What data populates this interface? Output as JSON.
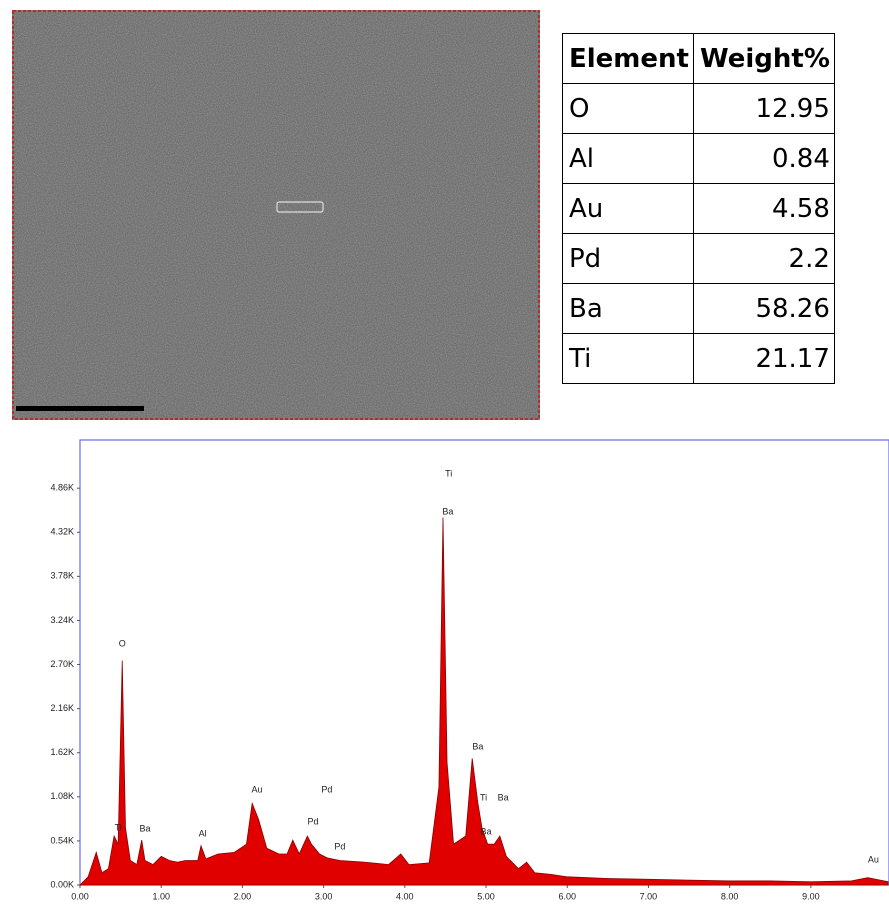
{
  "table": {
    "headers": [
      "Element",
      "Weight%"
    ],
    "rows": [
      [
        "O",
        12.95
      ],
      [
        "Al",
        0.84
      ],
      [
        "Au",
        4.58
      ],
      [
        "Pd",
        2.2
      ],
      [
        "Ba",
        58.26
      ],
      [
        "Ti",
        21.17
      ]
    ]
  },
  "chart_data": {
    "type": "area",
    "color": "#e00000",
    "x": [
      0,
      0.1,
      0.2,
      0.27,
      0.35,
      0.42,
      0.47,
      0.52,
      0.56,
      0.62,
      0.7,
      0.76,
      0.8,
      0.9,
      1.0,
      1.1,
      1.2,
      1.3,
      1.45,
      1.49,
      1.55,
      1.7,
      1.9,
      2.05,
      2.12,
      2.2,
      2.3,
      2.45,
      2.55,
      2.62,
      2.7,
      2.8,
      2.85,
      2.95,
      3.05,
      3.2,
      3.5,
      3.8,
      3.95,
      4.05,
      4.3,
      4.42,
      4.47,
      4.52,
      4.6,
      4.75,
      4.83,
      4.9,
      4.95,
      5.02,
      5.1,
      5.17,
      5.25,
      5.4,
      5.5,
      5.6,
      5.8,
      6.0,
      6.5,
      7.0,
      7.5,
      8.0,
      8.5,
      9.0,
      9.5,
      9.7,
      9.95
    ],
    "values": [
      0,
      100,
      400,
      150,
      200,
      600,
      500,
      2750,
      700,
      300,
      250,
      550,
      300,
      250,
      350,
      300,
      280,
      300,
      300,
      480,
      320,
      380,
      400,
      500,
      1000,
      800,
      450,
      380,
      380,
      550,
      380,
      600,
      500,
      380,
      330,
      300,
      280,
      250,
      380,
      250,
      270,
      1200,
      4500,
      1500,
      500,
      600,
      1550,
      1000,
      700,
      500,
      500,
      600,
      350,
      200,
      280,
      150,
      130,
      100,
      80,
      70,
      60,
      50,
      50,
      40,
      50,
      90,
      40
    ],
    "xlim": [
      0,
      9.95
    ],
    "ylim": [
      0,
      5450
    ],
    "xticks": [
      {
        "value": 0,
        "label": "0.00"
      },
      {
        "value": 1,
        "label": "1.00"
      },
      {
        "value": 2,
        "label": "2.00"
      },
      {
        "value": 3,
        "label": "3.00"
      },
      {
        "value": 4,
        "label": "4.00"
      },
      {
        "value": 5,
        "label": "5.00"
      },
      {
        "value": 6,
        "label": "6.00"
      },
      {
        "value": 7,
        "label": "7.00"
      },
      {
        "value": 8,
        "label": "8.00"
      },
      {
        "value": 9,
        "label": "9.00"
      }
    ],
    "yticks": [
      {
        "value": 0,
        "label": "0.00K"
      },
      {
        "value": 540,
        "label": "0.54K"
      },
      {
        "value": 1080,
        "label": "1.08K"
      },
      {
        "value": 1620,
        "label": "1.62K"
      },
      {
        "value": 2160,
        "label": "2.16K"
      },
      {
        "value": 2700,
        "label": "2.70K"
      },
      {
        "value": 3240,
        "label": "3.24K"
      },
      {
        "value": 3780,
        "label": "3.78K"
      },
      {
        "value": 4320,
        "label": "4.32K"
      },
      {
        "value": 4860,
        "label": "4.86K"
      }
    ],
    "annotations": [
      {
        "text": "O",
        "x": 0.52,
        "y": 2950
      },
      {
        "text": "Ti",
        "x": 0.47,
        "y": 698
      },
      {
        "text": "Ba",
        "x": 0.8,
        "y": 686
      },
      {
        "text": "Al",
        "x": 1.51,
        "y": 624
      },
      {
        "text": "Au",
        "x": 2.18,
        "y": 1163
      },
      {
        "text": "Pd",
        "x": 3.04,
        "y": 1163
      },
      {
        "text": "Pd",
        "x": 2.87,
        "y": 771
      },
      {
        "text": "Pd",
        "x": 3.2,
        "y": 465
      },
      {
        "text": "Ti",
        "x": 4.54,
        "y": 5032
      },
      {
        "text": "Ba",
        "x": 4.53,
        "y": 4567
      },
      {
        "text": "Ba",
        "x": 4.9,
        "y": 1690
      },
      {
        "text": "Ti",
        "x": 4.97,
        "y": 1065
      },
      {
        "text": "Ba",
        "x": 5.21,
        "y": 1065
      },
      {
        "text": "Ba",
        "x": 5.0,
        "y": 649
      },
      {
        "text": "Au",
        "x": 9.77,
        "y": 306
      }
    ]
  }
}
